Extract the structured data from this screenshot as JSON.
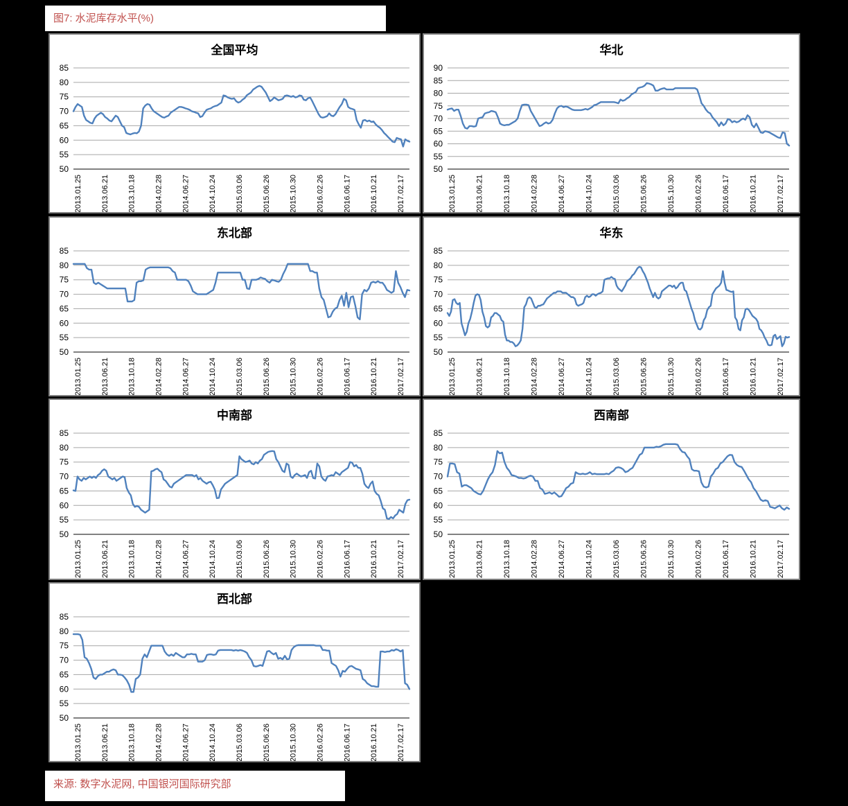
{
  "header": {
    "title": "图7:  水泥库存水平(%)"
  },
  "footer": {
    "source": "来源: 数字水泥网, 中国银河国际研究部"
  },
  "colors": {
    "page_background": "#000000",
    "panel_background": "#ffffff",
    "panel_border": "#808080",
    "line_blue": "#4F81BD",
    "gridline": "#A6A6A6",
    "axis_line": "#808080",
    "accent_red": "#C0504D",
    "text_black": "#000000"
  },
  "chart_data": [
    {
      "type": "line",
      "title": "全国平均",
      "ylabel": "",
      "xlabel": "",
      "ylim": [
        50,
        85
      ],
      "ytick_step": 5,
      "grid": true,
      "legend": false,
      "x_ticks": [
        "2013.01.25",
        "2013.06.21",
        "2013.10.18",
        "2014.02.28",
        "2014.06.27",
        "2014.10.24",
        "2015.03.06",
        "2015.06.26",
        "2015.10.30",
        "2016.02.26",
        "2016.06.17",
        "2016.10.21",
        "2017.02.17"
      ],
      "values": [
        70,
        71.5,
        72.5,
        72,
        71.5,
        68.5,
        67,
        66.5,
        66,
        65.8,
        67.5,
        68.5,
        69,
        69.5,
        69,
        68,
        67.5,
        66.8,
        66.5,
        67.5,
        68.5,
        68,
        66.5,
        65,
        64.5,
        62.5,
        62.2,
        62,
        62.3,
        62.5,
        62.4,
        63,
        65,
        71,
        72,
        72.5,
        72.3,
        71,
        70,
        69.5,
        69,
        68.5,
        68,
        67.8,
        68.2,
        68.5,
        69.5,
        70,
        70.5,
        71,
        71.5,
        71.5,
        71.3,
        71,
        70.8,
        70.5,
        70,
        69.8,
        69.5,
        69.3,
        68,
        68.3,
        69.5,
        70.5,
        70.8,
        71,
        71.5,
        71.8,
        72,
        72.5,
        73,
        75.5,
        75.3,
        74.8,
        74.5,
        74.3,
        74.5,
        73.5,
        73,
        73.3,
        74,
        74.5,
        75.5,
        76,
        76.5,
        77.5,
        78,
        78.5,
        78.8,
        78.5,
        77.5,
        76.5,
        75,
        73.5,
        74,
        74.8,
        74.3,
        73.8,
        74,
        74.3,
        75.3,
        75.5,
        75.3,
        75,
        75.3,
        74.8,
        75,
        75.5,
        75.3,
        74,
        73.8,
        74.5,
        74.8,
        73.5,
        72,
        70.5,
        69,
        68,
        67.8,
        68,
        68.3,
        69.3,
        68.5,
        68.3,
        69,
        70.3,
        71.5,
        72.5,
        74.3,
        73.8,
        71.5,
        71,
        70.8,
        70.5,
        67,
        65.5,
        64.3,
        66.8,
        67,
        66.5,
        66.8,
        66.3,
        66.5,
        65.5,
        64.8,
        64.3,
        63.5,
        62.5,
        61.8,
        61,
        60.3,
        59.5,
        59.3,
        60.8,
        60.5,
        60.3,
        57.8,
        60.3,
        59.8,
        59.5
      ]
    },
    {
      "type": "line",
      "title": "华北",
      "ylabel": "",
      "xlabel": "",
      "ylim": [
        50,
        90
      ],
      "ytick_step": 5,
      "grid": true,
      "legend": false,
      "x_ticks": [
        "2013.01.25",
        "2013.06.21",
        "2013.10.18",
        "2014.02.28",
        "2014.06.27",
        "2014.10.24",
        "2015.03.06",
        "2015.06.26",
        "2015.10.30",
        "2016.02.26",
        "2016.06.17",
        "2016.10.21",
        "2017.02.17"
      ],
      "values": [
        73.5,
        73.8,
        74,
        73,
        73.5,
        73.5,
        71,
        68,
        66.3,
        66,
        67,
        67,
        66.8,
        67,
        70,
        70.3,
        70.5,
        72,
        72.3,
        72.5,
        73,
        72.8,
        72.5,
        70.5,
        68,
        67.5,
        67.3,
        67.5,
        67.5,
        68,
        68.5,
        69,
        70,
        73,
        75.3,
        75.5,
        75.5,
        75.3,
        73,
        71.5,
        70,
        68.5,
        67,
        67.3,
        68,
        68.5,
        68,
        68.3,
        69.5,
        72,
        74,
        74.8,
        75,
        74.5,
        74.8,
        74.5,
        74,
        73.5,
        73.3,
        73.3,
        73.3,
        73.3,
        73.5,
        73.8,
        73.5,
        74,
        74.5,
        75.3,
        75.5,
        76,
        76.5,
        76.5,
        76.5,
        76.5,
        76.5,
        76.5,
        76.5,
        76.3,
        76,
        77.5,
        77,
        77.3,
        78,
        78.5,
        79.5,
        80,
        80.5,
        82,
        82.3,
        82.5,
        83,
        84,
        83.8,
        83.5,
        83,
        81,
        81,
        81.5,
        81.8,
        82,
        81.5,
        81.5,
        81.5,
        81.5,
        82,
        82,
        82,
        82,
        82,
        82,
        82,
        82,
        82,
        82,
        81.5,
        79,
        76,
        75,
        73.5,
        72.5,
        72,
        70.5,
        69.5,
        68.5,
        67,
        68.5,
        67.3,
        68,
        69.8,
        69.5,
        68.5,
        69,
        68.5,
        68.8,
        69.5,
        70,
        69.5,
        71.3,
        70.5,
        67.5,
        66.5,
        68,
        66.3,
        64.5,
        64.3,
        65,
        64.8,
        64.5,
        64,
        63.5,
        63,
        62.5,
        62.3,
        64.5,
        64.3,
        60,
        59.3
      ]
    },
    {
      "type": "line",
      "title": "东北部",
      "ylabel": "",
      "xlabel": "",
      "ylim": [
        50,
        85
      ],
      "ytick_step": 5,
      "grid": true,
      "legend": false,
      "x_ticks": [
        "2013.01.25",
        "2013.06.21",
        "2013.10.18",
        "2014.02.28",
        "2014.06.27",
        "2014.10.24",
        "2015.03.06",
        "2015.06.26",
        "2015.10.30",
        "2016.02.26",
        "2016.06.17",
        "2016.10.21",
        "2017.02.17"
      ],
      "values": [
        80.5,
        80.5,
        80.5,
        80.5,
        80.5,
        80.5,
        79,
        78.5,
        78.5,
        74,
        73.5,
        74,
        73.5,
        73,
        72.5,
        72,
        72,
        72,
        72,
        72,
        72,
        72,
        72,
        72,
        67.5,
        67.5,
        67.5,
        68,
        74,
        74.5,
        74.5,
        74.8,
        78.5,
        79,
        79.3,
        79.3,
        79.3,
        79.3,
        79.3,
        79.3,
        79.3,
        79.3,
        79.3,
        79,
        78,
        77.5,
        75,
        75,
        75,
        75,
        75,
        74.5,
        73,
        71,
        70.5,
        70,
        70,
        70,
        70,
        70,
        70.5,
        71,
        71.5,
        74,
        77.5,
        77.5,
        77.5,
        77.5,
        77.5,
        77.5,
        77.5,
        77.5,
        77.5,
        77.5,
        77.5,
        75,
        75,
        72,
        71.8,
        75,
        75,
        75,
        75.3,
        75.8,
        75.5,
        75.3,
        74.5,
        74,
        75,
        74.8,
        74.5,
        74.3,
        75,
        77,
        78.5,
        80.5,
        80.5,
        80.5,
        80.5,
        80.5,
        80.5,
        80.5,
        80.5,
        80.5,
        80.5,
        78,
        78,
        77.5,
        77.5,
        72,
        69,
        68,
        65,
        62,
        62.3,
        64,
        65,
        65.5,
        68,
        69.5,
        66,
        70.5,
        65.5,
        69,
        69.3,
        66,
        62,
        61.3,
        70,
        71.5,
        71,
        72,
        74,
        74.3,
        74,
        74.5,
        74,
        74,
        73,
        71.5,
        71,
        70.5,
        71,
        78,
        74,
        72.5,
        70.5,
        69,
        71.5,
        71.3
      ]
    },
    {
      "type": "line",
      "title": "华东",
      "ylabel": "",
      "xlabel": "",
      "ylim": [
        50,
        85
      ],
      "ytick_step": 5,
      "grid": true,
      "legend": false,
      "x_ticks": [
        "2013.01.25",
        "2013.06.21",
        "2013.10.18",
        "2014.02.28",
        "2014.06.27",
        "2014.10.24",
        "2015.03.06",
        "2015.06.26",
        "2015.10.30",
        "2016.02.26",
        "2016.06.17",
        "2016.10.21",
        "2017.02.17"
      ],
      "values": [
        63.5,
        62.5,
        64,
        68,
        68.3,
        67,
        66.5,
        67,
        60,
        58,
        55.8,
        57,
        60,
        61.5,
        64,
        67,
        69.5,
        70,
        69.8,
        68,
        64,
        62,
        59,
        58.5,
        59,
        62,
        62.5,
        63.5,
        63.5,
        63,
        62.5,
        61,
        60.5,
        56,
        54,
        54,
        53.5,
        53.5,
        53,
        52,
        52.3,
        53,
        54,
        58,
        65.5,
        66.5,
        68.5,
        69,
        68.5,
        67,
        65.5,
        65.3,
        66,
        66,
        66.3,
        66.5,
        67.5,
        68.5,
        69,
        69.5,
        70,
        70.5,
        70.5,
        71,
        71,
        71,
        70.5,
        70.5,
        70.5,
        70,
        69.5,
        69,
        69,
        68.5,
        66.5,
        66,
        66.3,
        66.5,
        67,
        69,
        69.5,
        69,
        69.3,
        70,
        70,
        69.5,
        70,
        70.3,
        70.5,
        71,
        75,
        75.3,
        75.5,
        75.5,
        76,
        75.5,
        75.3,
        73,
        72,
        71.5,
        71,
        72,
        73,
        74.5,
        75,
        75.5,
        76.5,
        77,
        78,
        79,
        79.5,
        79.3,
        78,
        77,
        75.5,
        74,
        72,
        70.5,
        69,
        70.5,
        69,
        68.5,
        69,
        71,
        71.5,
        72,
        72.5,
        73,
        73,
        72.5,
        73,
        72,
        72.5,
        73.5,
        74,
        74,
        71.5,
        71,
        69,
        67,
        65,
        63.5,
        61,
        59.5,
        58,
        57.8,
        58.5,
        61,
        62,
        64.5,
        65.5,
        66,
        70,
        71,
        72,
        72.5,
        73,
        74,
        78,
        74,
        71.5,
        71.3,
        71,
        70.8,
        71,
        62,
        61,
        58,
        57.5,
        61,
        62,
        64.8,
        65,
        64.5,
        63.5,
        62.5,
        62,
        61.5,
        60.5,
        58,
        57.5,
        56.5,
        55,
        54,
        52.5,
        52.3,
        52.5,
        55.5,
        56,
        54.5,
        55,
        55.5,
        52,
        53,
        55.3,
        55,
        55.2
      ]
    },
    {
      "type": "line",
      "title": "中南部",
      "ylabel": "",
      "xlabel": "",
      "ylim": [
        50,
        85
      ],
      "ytick_step": 5,
      "grid": true,
      "legend": false,
      "x_ticks": [
        "2013.01.25",
        "2013.06.21",
        "2013.10.18",
        "2014.02.28",
        "2014.06.27",
        "2014.10.24",
        "2015.03.06",
        "2015.06.26",
        "2015.10.30",
        "2016.02.26",
        "2016.06.17",
        "2016.10.21",
        "2017.02.17"
      ],
      "values": [
        65.2,
        65,
        70,
        69,
        68.5,
        69.5,
        69,
        69.5,
        70,
        69.5,
        70,
        69.5,
        70.5,
        71,
        72,
        72.5,
        72,
        70,
        69.5,
        69,
        69.5,
        68.5,
        69,
        69.5,
        70,
        69.8,
        66,
        64.5,
        63.5,
        60.5,
        59.5,
        59.8,
        59.5,
        58.5,
        58,
        57.5,
        58,
        58.5,
        71.8,
        72,
        72.5,
        72.7,
        72,
        71.5,
        69,
        68.5,
        67.5,
        66.5,
        66.2,
        67.5,
        68,
        68.5,
        69,
        69.5,
        70,
        70.5,
        70.5,
        70.5,
        70.5,
        70,
        70.5,
        69,
        69.5,
        68.5,
        68,
        67.5,
        68,
        68.2,
        67,
        65.5,
        62.5,
        62.6,
        65.5,
        66.5,
        67.5,
        68,
        68.5,
        69,
        69.5,
        70,
        70.5,
        77,
        76,
        75.5,
        75,
        75.2,
        75.5,
        74.5,
        74.2,
        75,
        74.5,
        75.5,
        76,
        77.5,
        78,
        78.5,
        78.7,
        78.8,
        78.7,
        76,
        75,
        73.5,
        72,
        71.5,
        74.5,
        74,
        70,
        69.5,
        70.5,
        71,
        70.5,
        70,
        70.2,
        70.5,
        69.5,
        71.5,
        72,
        69.5,
        69.3,
        74.5,
        73.5,
        70,
        69,
        68.5,
        70,
        70.2,
        70.5,
        70.3,
        71.5,
        71,
        70.5,
        71.5,
        72,
        72.5,
        73,
        75,
        74.8,
        73.5,
        74,
        73,
        73,
        71,
        67.5,
        66.5,
        66,
        67.5,
        68.3,
        65,
        64,
        63.5,
        61.5,
        59,
        58.5,
        55.5,
        55.3,
        56,
        55.5,
        56.5,
        57,
        58.5,
        58,
        57.5,
        60.5,
        61.8,
        62
      ]
    },
    {
      "type": "line",
      "title": "西南部",
      "ylabel": "",
      "xlabel": "",
      "ylim": [
        50,
        85
      ],
      "ytick_step": 5,
      "grid": true,
      "legend": false,
      "x_ticks": [
        "2013.01.25",
        "2013.06.21",
        "2013.10.18",
        "2014.02.28",
        "2014.06.27",
        "2014.10.24",
        "2015.03.06",
        "2015.06.26",
        "2015.10.30",
        "2016.02.26",
        "2016.06.17",
        "2016.10.21",
        "2017.02.17"
      ],
      "values": [
        70,
        74.5,
        74.5,
        74.3,
        71.5,
        71,
        66.5,
        67,
        67,
        66.5,
        66,
        65,
        64.5,
        64,
        63.8,
        65,
        67,
        69,
        70.5,
        71.5,
        74,
        78.8,
        78,
        78.3,
        75,
        73,
        72,
        70.5,
        70.3,
        70,
        69.5,
        69.5,
        69.3,
        69.5,
        70,
        70.3,
        70,
        68.5,
        68.5,
        66,
        65.5,
        64,
        64.2,
        64.5,
        64,
        64.5,
        63.8,
        63,
        63.2,
        64.5,
        66,
        66.5,
        67.5,
        67.8,
        71.5,
        71,
        70.8,
        71,
        70.8,
        71,
        71.5,
        70.8,
        71,
        70.8,
        70.8,
        70.8,
        70.8,
        71,
        70.8,
        71.5,
        72,
        73,
        73.2,
        73,
        72.5,
        71.5,
        71.8,
        72.5,
        73,
        74.5,
        76,
        77.5,
        78,
        80,
        80,
        80,
        80,
        80,
        80.3,
        80.2,
        80.5,
        81,
        81.2,
        81.2,
        81.2,
        81.2,
        81.2,
        81,
        79.5,
        78.5,
        78.3,
        77,
        76,
        72.5,
        72,
        72,
        71.8,
        68,
        66.5,
        66.2,
        66.5,
        70,
        71,
        72.5,
        73,
        74.5,
        75,
        76,
        77,
        77.5,
        77.4,
        75,
        74,
        73.5,
        73.3,
        72,
        70.5,
        69,
        68,
        66,
        65,
        63.5,
        62,
        61.5,
        61.8,
        61.5,
        59.5,
        59.3,
        59,
        59.5,
        60,
        59,
        58.5,
        59.3,
        58.8
      ]
    },
    {
      "type": "line",
      "title": "西北部",
      "ylabel": "",
      "xlabel": "",
      "ylim": [
        50,
        85
      ],
      "ytick_step": 5,
      "grid": true,
      "legend": false,
      "x_ticks": [
        "2013.01.25",
        "2013.06.21",
        "2013.10.18",
        "2014.02.28",
        "2014.06.27",
        "2014.10.24",
        "2015.03.06",
        "2015.06.26",
        "2015.10.30",
        "2016.02.26",
        "2016.06.17",
        "2016.10.21",
        "2017.02.17"
      ],
      "values": [
        79,
        79,
        79,
        78.8,
        77,
        71,
        70.5,
        69,
        67,
        64,
        63.5,
        64.5,
        65,
        65,
        65.5,
        66,
        66,
        66.5,
        66.8,
        66.5,
        65,
        65,
        64.8,
        64,
        63,
        61.5,
        59,
        59,
        63.5,
        64,
        65,
        70.5,
        72,
        71,
        73,
        75,
        75,
        75,
        75,
        75,
        75,
        73,
        72,
        71.5,
        72,
        71.5,
        72.5,
        72,
        71.5,
        71,
        71,
        72,
        72,
        72.2,
        72,
        72,
        69.5,
        69.5,
        69.5,
        70,
        71.8,
        72,
        72,
        71.8,
        72,
        73.3,
        73.5,
        73.5,
        73.5,
        73.5,
        73.5,
        73.5,
        73.3,
        73.5,
        73.3,
        73.5,
        73.3,
        73,
        72.5,
        71,
        70,
        68,
        67.8,
        68,
        68.3,
        68,
        70.5,
        73,
        73.2,
        72.5,
        72,
        72.5,
        70.5,
        70.8,
        70.3,
        71.5,
        70.3,
        70.5,
        73.5,
        74.5,
        75,
        75.2,
        75.2,
        75.2,
        75.2,
        75.2,
        75.2,
        75.2,
        75.2,
        75,
        75,
        75,
        73.5,
        73.5,
        73.3,
        73.3,
        69,
        68.5,
        68,
        66.5,
        64.3,
        66.3,
        66,
        67,
        67.8,
        68,
        67.5,
        67,
        66.8,
        66.5,
        63.5,
        63,
        62,
        61.5,
        61,
        61,
        60.8,
        60.8,
        73,
        73,
        72.8,
        73,
        73,
        73.5,
        73.3,
        73.8,
        73.5,
        73,
        73.5,
        62,
        61.5,
        60
      ]
    }
  ]
}
